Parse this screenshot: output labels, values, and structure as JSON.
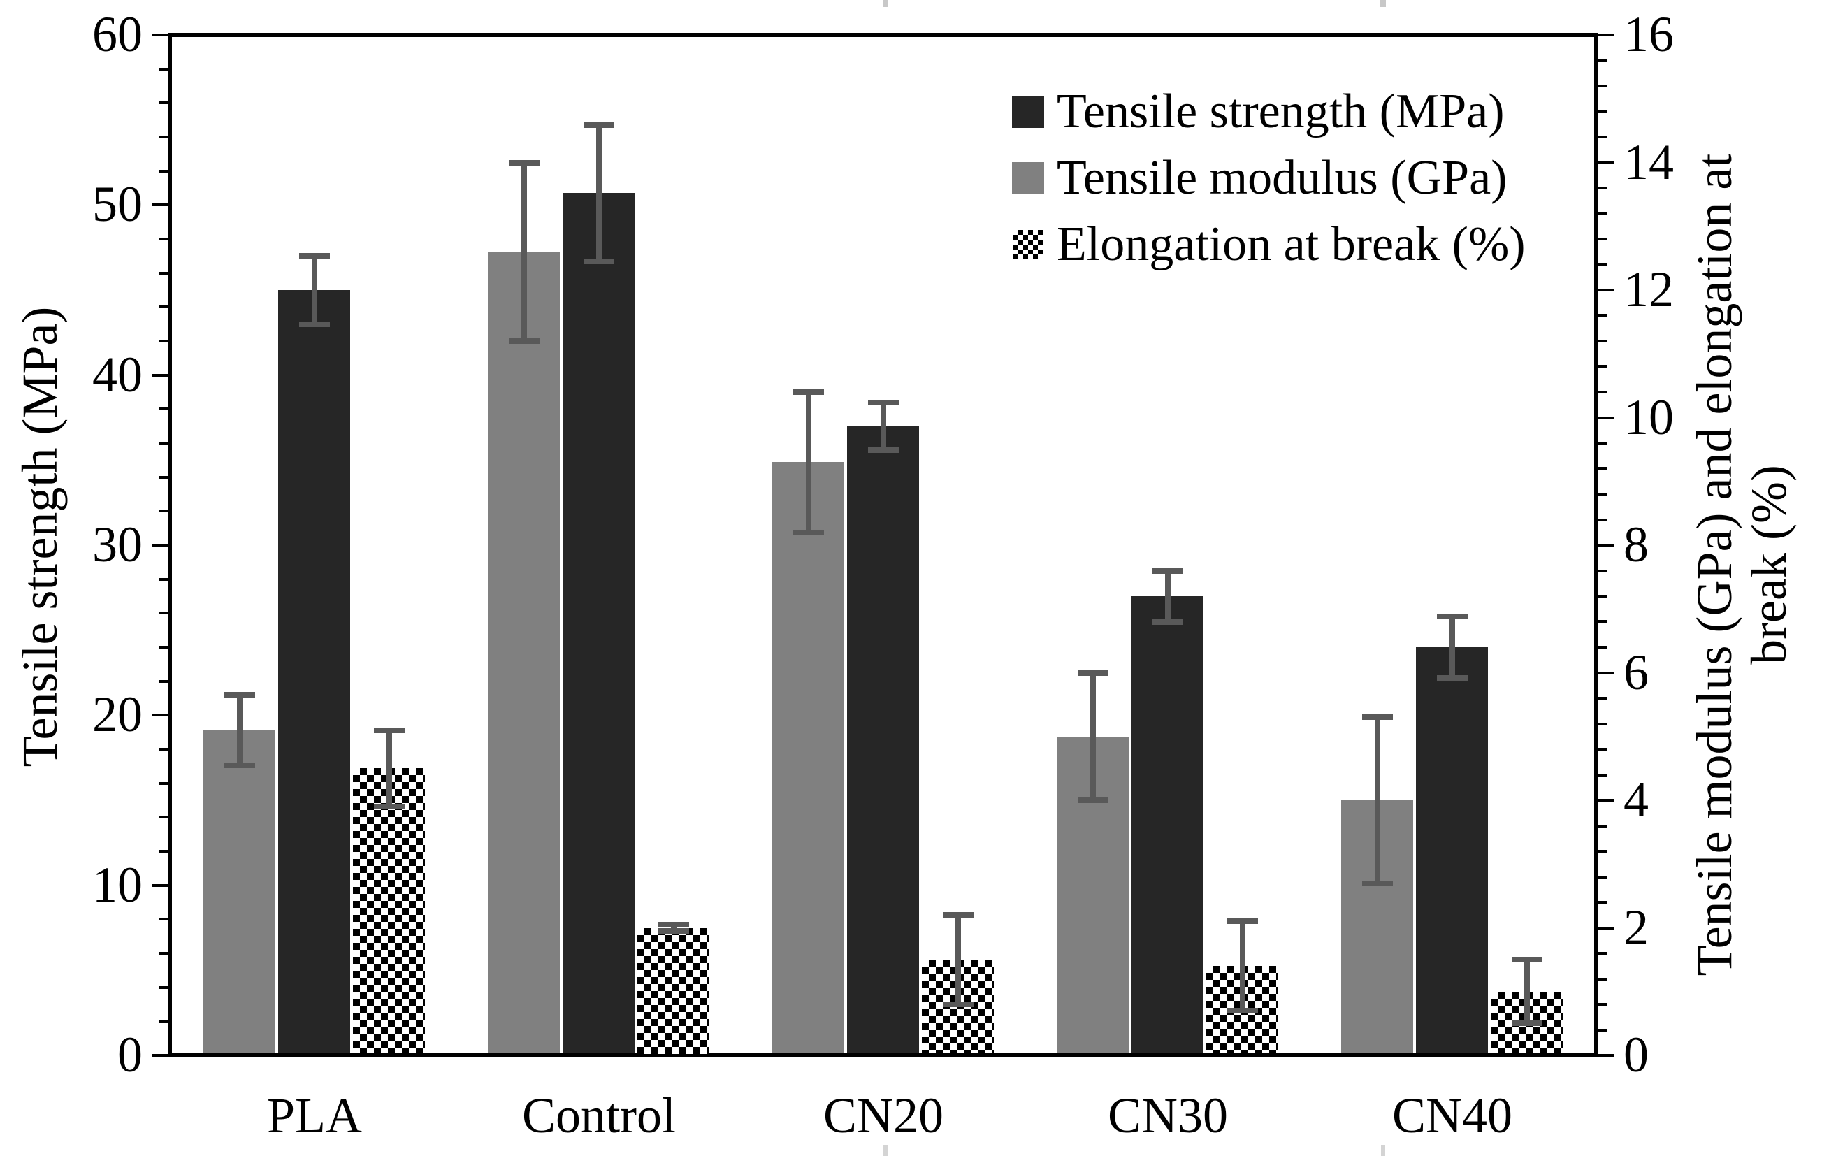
{
  "chart_data": {
    "type": "bar",
    "title": "",
    "categories": [
      "PLA",
      "Control",
      "CN20",
      "CN30",
      "CN40"
    ],
    "series": [
      {
        "name": "Tensile strength (MPa)",
        "axis": "left",
        "style": "solid",
        "color": "#262626",
        "bar_position": 1,
        "values": [
          45,
          50.7,
          37,
          27,
          24
        ],
        "errors": [
          2.0,
          4.0,
          1.4,
          1.5,
          1.8
        ]
      },
      {
        "name": "Tensile modulus (GPa)",
        "axis": "right",
        "style": "solid",
        "color": "#808080",
        "bar_position": 0,
        "values": [
          5.1,
          12.6,
          9.3,
          5.0,
          4.0
        ],
        "errors": [
          0.55,
          1.4,
          1.1,
          1.0,
          1.3
        ]
      },
      {
        "name": "Elongation at break (%)",
        "axis": "right",
        "style": "checker",
        "color": "checkerboard-black-white",
        "bar_position": 2,
        "values": [
          4.5,
          2.0,
          1.5,
          1.4,
          1.0
        ],
        "errors": [
          0.6,
          0.05,
          0.7,
          0.7,
          0.5
        ]
      }
    ],
    "left_axis": {
      "label": "Tensile strength (MPa)",
      "min": 0,
      "max": 60,
      "major_step": 10,
      "minor_step": 2,
      "tick_labels": [
        "0",
        "10",
        "20",
        "30",
        "40",
        "50",
        "60"
      ]
    },
    "right_axis": {
      "label_line1": "Tensile modulus (GPa) and elongation at",
      "label_line2": "break (%)",
      "min": 0,
      "max": 16,
      "major_step": 2,
      "minor_step": 0.4,
      "tick_labels": [
        "0",
        "2",
        "4",
        "6",
        "8",
        "10",
        "12",
        "14",
        "16"
      ]
    },
    "legend": {
      "position": "top-right-inside",
      "entries": [
        "Tensile strength (MPa)",
        "Tensile modulus (GPa)",
        "Elongation at break (%)"
      ]
    },
    "grid": false,
    "error_bar_color": "#595959",
    "plot_border": "full-box"
  }
}
